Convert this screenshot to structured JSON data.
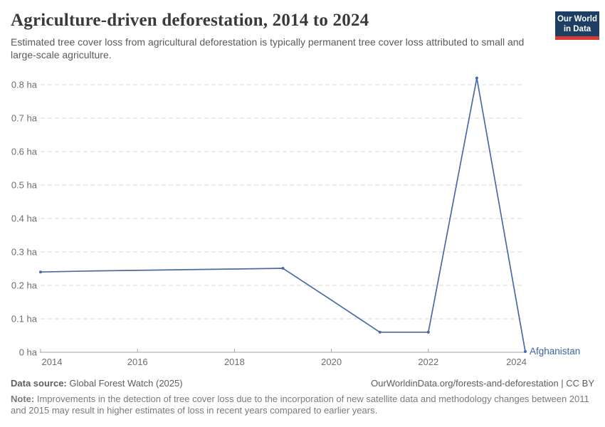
{
  "page": {
    "title": "Agriculture-driven deforestation, 2014 to 2024",
    "subtitle": "Estimated tree cover loss from agricultural deforestation is typically permanent tree cover loss attributed to small and large-scale agriculture."
  },
  "logo": {
    "line1": "Our World",
    "line2": "in Data"
  },
  "chart_data": {
    "type": "line",
    "title": "Agriculture-driven deforestation, 2014 to 2024",
    "unit": "ha",
    "x": [
      2014,
      2015,
      2016,
      2017,
      2018,
      2019,
      2020,
      2021,
      2022,
      2023,
      2024
    ],
    "series": [
      {
        "name": "Afghanistan",
        "values": [
          0.24,
          0.243,
          0.245,
          0.247,
          0.249,
          0.251,
          0.156,
          0.06,
          0.06,
          0.82,
          0.002
        ]
      }
    ],
    "marker_years": [
      2014,
      2019,
      2021,
      2022,
      2023,
      2024
    ],
    "ylim": [
      0,
      0.82
    ],
    "yticks": [
      {
        "value": 0,
        "label": "0 ha"
      },
      {
        "value": 0.1,
        "label": "0.1 ha"
      },
      {
        "value": 0.2,
        "label": "0.2 ha"
      },
      {
        "value": 0.3,
        "label": "0.3 ha"
      },
      {
        "value": 0.4,
        "label": "0.4 ha"
      },
      {
        "value": 0.5,
        "label": "0.5 ha"
      },
      {
        "value": 0.6,
        "label": "0.6 ha"
      },
      {
        "value": 0.7,
        "label": "0.7 ha"
      },
      {
        "value": 0.8,
        "label": "0.8 ha"
      }
    ],
    "xticks": [
      2014,
      2016,
      2018,
      2020,
      2022,
      2024
    ],
    "grid": "horizontal-dashed",
    "legend_position": "end-of-line-label"
  },
  "footer": {
    "source_label": "Data source:",
    "source_value": "Global Forest Watch (2025)",
    "attribution": "OurWorldinData.org/forests-and-deforestation | CC BY",
    "note_label": "Note:",
    "note_value": "Improvements in the detection of tree cover loss due to the incorporation of new satellite data and methodology changes between 2011 and 2015 may result in higher estimates of loss in recent years compared to earlier years."
  },
  "colors": {
    "line": "#4a6aa9",
    "series_label": "#3d649f",
    "grid": "#d9d9d9",
    "axis": "#a5a5a5",
    "tick_text": "#6e6e6e",
    "logo_bg": "#1d3d63",
    "logo_bar": "#d73c34"
  }
}
